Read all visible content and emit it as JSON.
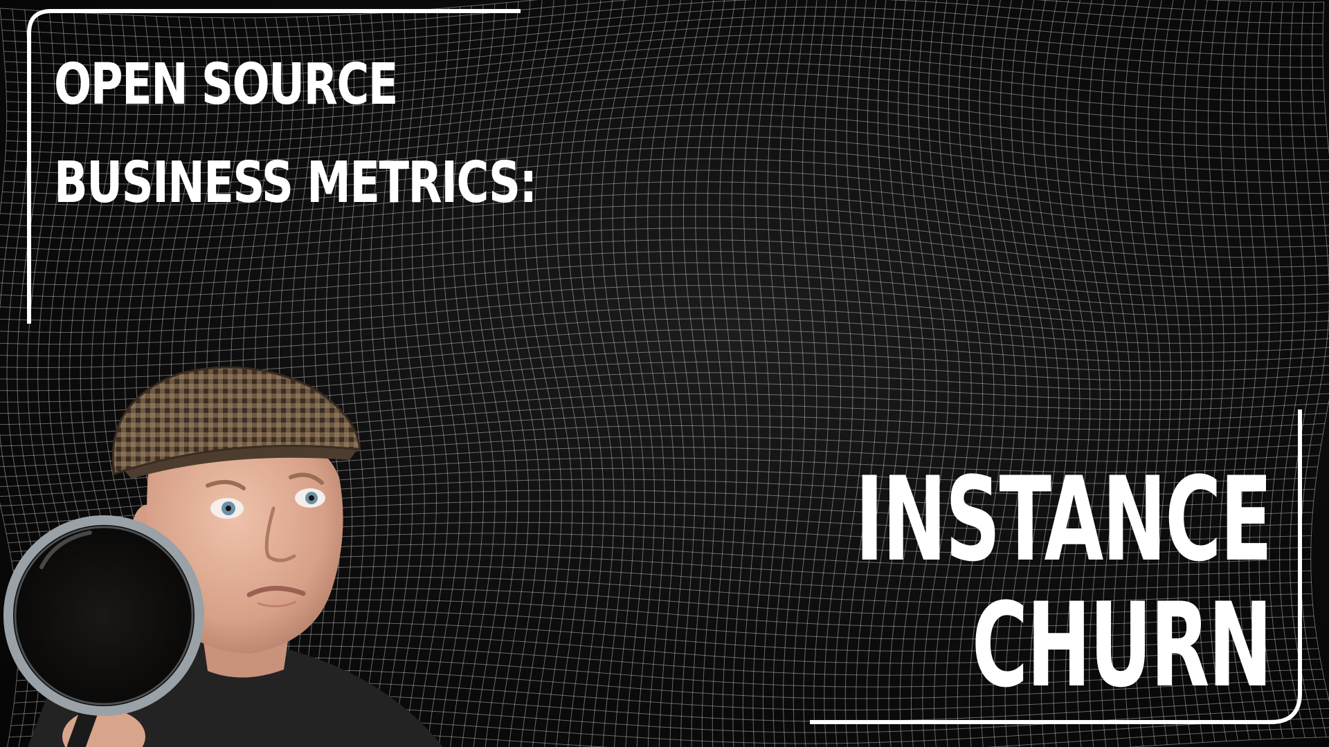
{
  "thumbnail": {
    "headline_lines": [
      "OPEN SOURCE",
      "BUSINESS METRICS:"
    ],
    "topic_lines": [
      "INSTANCE",
      "CHURN"
    ]
  },
  "colors": {
    "background": "#0b0b0b",
    "mesh_lines": "#ffffff",
    "text": "#ffffff",
    "frame": "#ffffff",
    "hat": "#6b5640",
    "skin": "#e2b39c",
    "sweater": "#232323"
  }
}
